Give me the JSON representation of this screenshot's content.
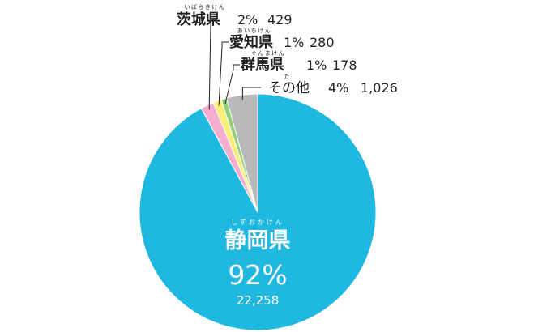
{
  "chart_data": {
    "type": "pie",
    "slices": [
      {
        "label": "静岡県",
        "reading": "しずおかけん",
        "percent_label": "92%",
        "value": 22258,
        "value_label": "22,258",
        "color": "#1eb8e0"
      },
      {
        "label": "茨城県",
        "reading": "いばらきけん",
        "percent_label": "2%",
        "value": 429,
        "value_label": "429",
        "color": "#f6aed0"
      },
      {
        "label": "愛知県",
        "reading": "あいちけん",
        "percent_label": "1%",
        "value": 280,
        "value_label": "280",
        "color": "#faee7a"
      },
      {
        "label": "群馬県",
        "reading": "ぐんまけん",
        "percent_label": "1%",
        "value": 178,
        "value_label": "178",
        "color": "#8fcf78"
      },
      {
        "label": "その他",
        "reading": "た",
        "percent_label": "4%",
        "value": 1026,
        "value_label": "1,026",
        "color": "#b9b9b9"
      }
    ]
  }
}
